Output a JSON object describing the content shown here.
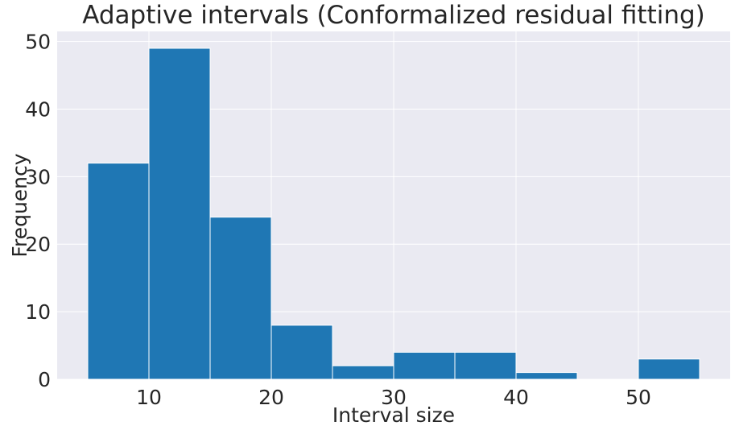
{
  "chart_data": {
    "type": "bar",
    "title": "Adaptive intervals (Conformalized residual fitting)",
    "xlabel": "Interval size",
    "ylabel": "Frequency",
    "bins": [
      {
        "start": 5,
        "end": 10,
        "count": 32
      },
      {
        "start": 10,
        "end": 15,
        "count": 49
      },
      {
        "start": 15,
        "end": 20,
        "count": 24
      },
      {
        "start": 20,
        "end": 25,
        "count": 8
      },
      {
        "start": 25,
        "end": 30,
        "count": 2
      },
      {
        "start": 30,
        "end": 35,
        "count": 4
      },
      {
        "start": 35,
        "end": 40,
        "count": 4
      },
      {
        "start": 40,
        "end": 45,
        "count": 1
      },
      {
        "start": 45,
        "end": 50,
        "count": 0
      },
      {
        "start": 50,
        "end": 55,
        "count": 3
      }
    ],
    "xlim": [
      2.5,
      57.5
    ],
    "ylim": [
      0,
      51.5
    ],
    "xticks": [
      10,
      20,
      30,
      40,
      50
    ],
    "yticks": [
      0,
      10,
      20,
      30,
      40,
      50
    ],
    "grid": true,
    "colors": {
      "bar": "#1f77b4",
      "background": "#eaeaf2",
      "grid": "#ffffff"
    }
  }
}
